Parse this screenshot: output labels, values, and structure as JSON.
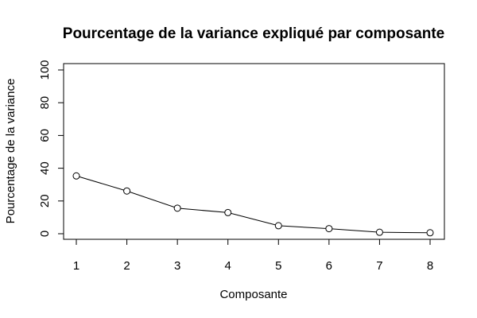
{
  "chart_data": {
    "type": "line",
    "title": "Pourcentage de la variance expliqué par composante",
    "xlabel": "Composante",
    "ylabel": "Pourcentage de la variance",
    "x": [
      1,
      2,
      3,
      4,
      5,
      6,
      7,
      8
    ],
    "values": [
      35.3,
      26.1,
      15.6,
      12.9,
      4.9,
      3.1,
      0.9,
      0.6
    ],
    "xlim": [
      1,
      8
    ],
    "ylim": [
      0,
      100
    ],
    "xticks": [
      "1",
      "2",
      "3",
      "4",
      "5",
      "6",
      "7",
      "8"
    ],
    "yticks": [
      "0",
      "20",
      "40",
      "60",
      "80",
      "100"
    ],
    "grid": false,
    "marker": "open-circle",
    "line_color": "#000000",
    "marker_fill": "#ffffff"
  }
}
